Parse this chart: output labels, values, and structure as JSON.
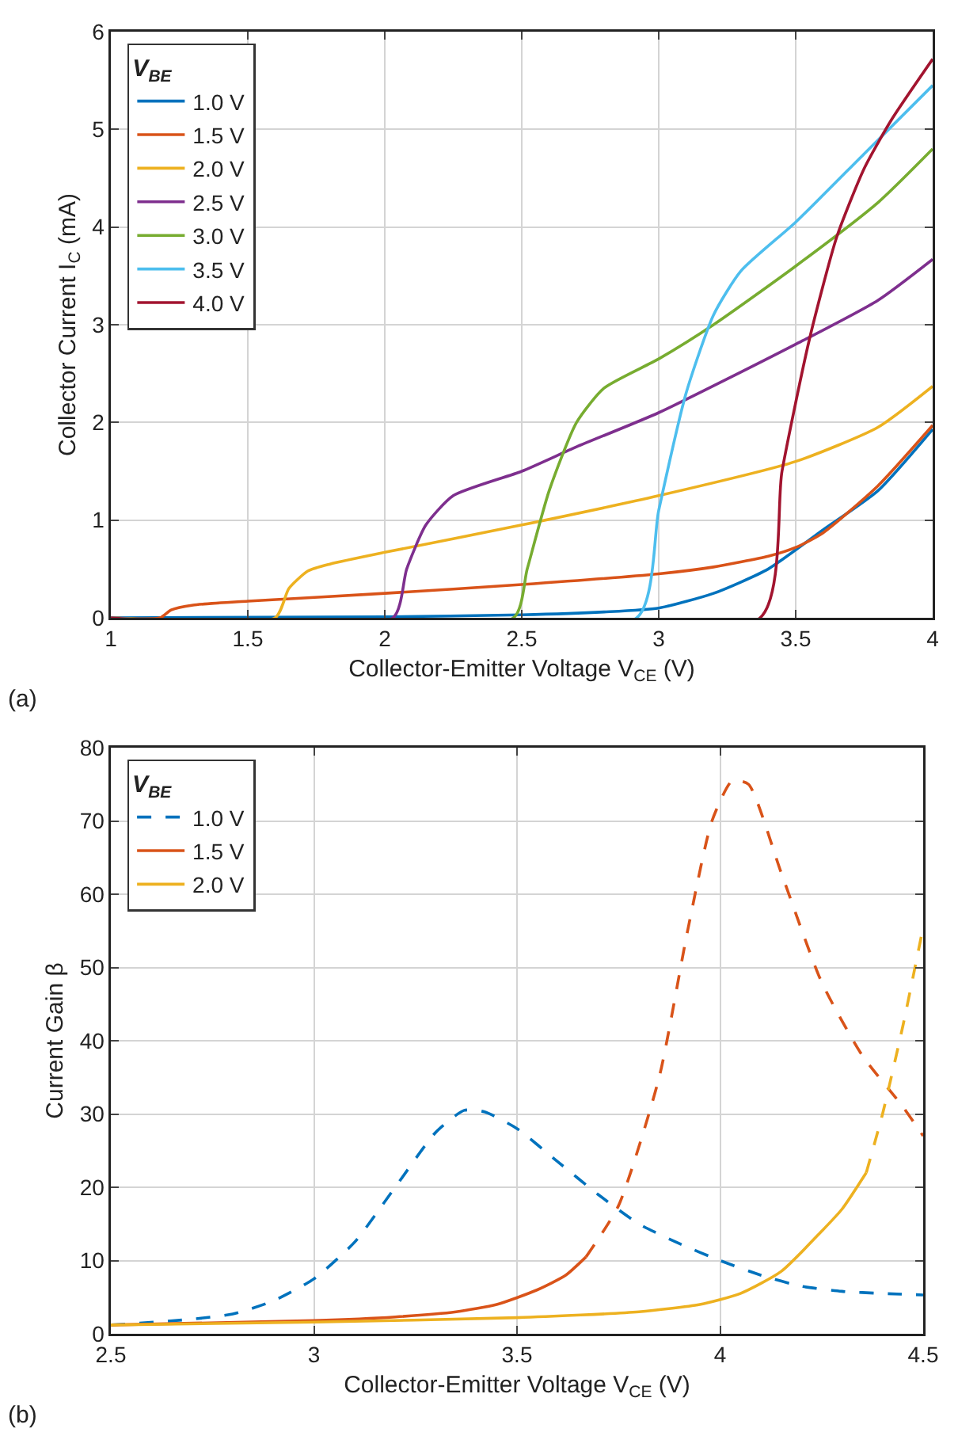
{
  "chart_data": [
    {
      "type": "line",
      "xlabel": "Collector-Emitter Voltage V$_{CE}$ (V)",
      "ylabel": "Collector Current I$_{C}$ (mA)",
      "legend_title": "V$_{BE}$",
      "annotations": [
        "(a)"
      ],
      "xlim": [
        1,
        4
      ],
      "xticks": [
        1,
        1.5,
        2,
        2.5,
        3,
        3.5,
        4
      ],
      "ylim": [
        0,
        6
      ],
      "yticks": [
        0,
        1,
        2,
        3,
        4,
        5,
        6
      ],
      "grid": true,
      "legend": "top left",
      "line_style": "solid",
      "marker": "none",
      "series": [
        {
          "name": "1.0 V",
          "color": "#0072bd",
          "x": [
            1,
            2,
            2.5,
            2.8,
            3,
            3.2,
            3.4,
            3.6,
            3.8,
            4
          ],
          "values": [
            0,
            0.01,
            0.03,
            0.06,
            0.1,
            0.25,
            0.5,
            0.9,
            1.3,
            1.93
          ]
        },
        {
          "name": "1.5 V",
          "color": "#d95319",
          "x": [
            1,
            1.18,
            1.22,
            1.3,
            1.5,
            2,
            2.5,
            3,
            3.2,
            3.4,
            3.5,
            3.6,
            3.8,
            4
          ],
          "values": [
            0,
            0,
            0.08,
            0.13,
            0.17,
            0.25,
            0.34,
            0.45,
            0.52,
            0.63,
            0.72,
            0.87,
            1.35,
            1.97
          ]
        },
        {
          "name": "2.0 V",
          "color": "#edb120",
          "x": [
            1,
            1.6,
            1.65,
            1.72,
            1.8,
            2,
            2.5,
            3,
            3.5,
            3.8,
            4
          ],
          "values": [
            0,
            0,
            0.3,
            0.48,
            0.55,
            0.67,
            0.95,
            1.25,
            1.6,
            1.95,
            2.37
          ]
        },
        {
          "name": "2.5 V",
          "color": "#7e2f8e",
          "x": [
            1,
            2.03,
            2.08,
            2.15,
            2.25,
            2.5,
            2.7,
            3,
            3.5,
            3.8,
            4
          ],
          "values": [
            0,
            0,
            0.5,
            0.95,
            1.25,
            1.5,
            1.75,
            2.1,
            2.8,
            3.25,
            3.67
          ]
        },
        {
          "name": "3.0 V",
          "color": "#77ac30",
          "x": [
            1,
            2.47,
            2.52,
            2.6,
            2.7,
            2.8,
            3,
            3.2,
            3.5,
            3.8,
            4
          ],
          "values": [
            0,
            0,
            0.5,
            1.3,
            2.0,
            2.35,
            2.65,
            3.0,
            3.6,
            4.25,
            4.8
          ]
        },
        {
          "name": "3.5 V",
          "color": "#4dbeee",
          "x": [
            1,
            2.92,
            3,
            3.1,
            3.2,
            3.3,
            3.5,
            3.75,
            4
          ],
          "values": [
            0,
            0,
            1.1,
            2.3,
            3.1,
            3.55,
            4.05,
            4.75,
            5.45
          ]
        },
        {
          "name": "4.0 V",
          "color": "#a2142f",
          "x": [
            1,
            3.37,
            3.45,
            3.55,
            3.65,
            3.75,
            3.85,
            4
          ],
          "values": [
            0,
            0,
            1.5,
            2.85,
            3.9,
            4.6,
            5.1,
            5.72
          ]
        }
      ]
    },
    {
      "type": "line",
      "xlabel": "Collector-Emitter Voltage V$_{CE}$ (V)",
      "ylabel": "Current Gain β",
      "legend_title": "V$_{BE}$",
      "annotations": [
        "(b)"
      ],
      "xlim": [
        2.5,
        4.5
      ],
      "xticks": [
        2.5,
        3,
        3.5,
        4,
        4.5
      ],
      "ylim": [
        0,
        80
      ],
      "yticks": [
        0,
        10,
        20,
        30,
        40,
        50,
        60,
        70,
        80
      ],
      "grid": true,
      "legend": "top left",
      "marker": "none",
      "series": [
        {
          "name": "1.0 V",
          "color": "#0072bd",
          "line_style": "dashed",
          "x": [
            2.5,
            2.7,
            2.8,
            2.9,
            3,
            3.1,
            3.2,
            3.3,
            3.37,
            3.42,
            3.5,
            3.6,
            3.7,
            3.8,
            3.9,
            4,
            4.1,
            4.2,
            4.3,
            4.4,
            4.5
          ],
          "values": [
            1.2,
            2,
            2.7,
            4.5,
            7.5,
            12.5,
            20,
            27.5,
            30.5,
            30.3,
            28,
            23.5,
            19,
            15,
            12.3,
            10,
            8,
            6.5,
            5.8,
            5.5,
            5.3
          ]
        },
        {
          "name": "1.5 V",
          "color": "#d95319",
          "line_style": "solid",
          "x": [
            2.5,
            3,
            3.2,
            3.35,
            3.45,
            3.55,
            3.62,
            3.67
          ],
          "values": [
            1.2,
            1.8,
            2.3,
            3,
            4,
            6,
            8,
            10.5
          ]
        },
        {
          "color": "#d95319",
          "line_style": "dashed",
          "x": [
            3.67,
            3.75,
            3.85,
            3.92,
            3.98,
            4.03,
            4.07,
            4.15,
            4.25,
            4.35,
            4.45,
            4.5
          ],
          "values": [
            10.5,
            17.5,
            35,
            55,
            70,
            75.5,
            75,
            63,
            48,
            38,
            31,
            27
          ]
        },
        {
          "name": "2.0 V",
          "color": "#edb120",
          "line_style": "solid",
          "x": [
            2.5,
            3,
            3.5,
            3.8,
            3.95,
            4.05,
            4.15,
            4.25,
            4.3,
            4.36
          ],
          "values": [
            1.2,
            1.6,
            2.2,
            3,
            4,
            5.5,
            8.5,
            14,
            17,
            22
          ]
        },
        {
          "color": "#edb120",
          "line_style": "dashed",
          "x": [
            4.36,
            4.4,
            4.45,
            4.5
          ],
          "values": [
            22,
            30,
            42,
            55.5
          ]
        }
      ]
    }
  ]
}
